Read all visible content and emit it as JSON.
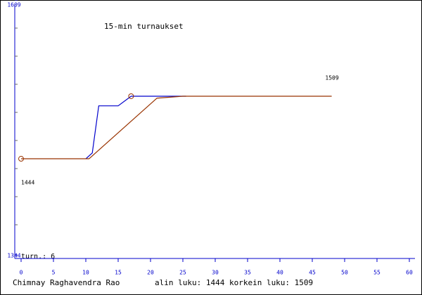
{
  "chart_data": {
    "type": "line",
    "title": "15-min turnaukset",
    "series": [
      {
        "color": "#0000cc",
        "x": [
          10,
          11,
          12,
          15,
          17,
          25.5
        ],
        "values": [
          1444,
          1450,
          1499,
          1499,
          1509,
          1509
        ],
        "marker": 4
      },
      {
        "color": "#993300",
        "x": [
          0,
          10.5,
          21,
          25,
          48
        ],
        "values": [
          1444,
          1444,
          1507,
          1509,
          1509
        ],
        "marker": 0
      }
    ],
    "xlim": [
      0,
      60
    ],
    "xticks": [
      0,
      5,
      10,
      15,
      20,
      25,
      30,
      35,
      40,
      45,
      50,
      55,
      60
    ],
    "ylim": [
      1344,
      1609
    ],
    "yticks": [
      1344,
      1609
    ],
    "annotations": [
      {
        "text": "1444",
        "x": 0,
        "y": 1444
      },
      {
        "text": "1509",
        "x": 47,
        "y": 1509
      }
    ],
    "games_label": "turn.: 6",
    "player": "Chimnay Raghavendra Rao",
    "stats": "alin luku: 1444  korkein luku: 1509"
  }
}
